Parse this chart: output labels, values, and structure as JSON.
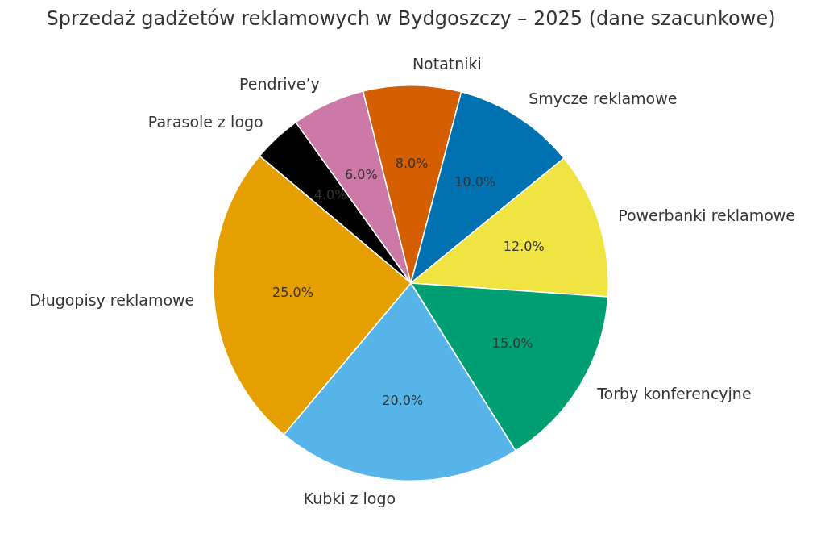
{
  "chart_data": {
    "type": "pie",
    "title": "Sprzedaż gadżetów reklamowych w Bydgoszczy – 2025 (dane szacunkowe)",
    "categories": [
      "Długopisy reklamowe",
      "Kubki z logo",
      "Torby konferencyjne",
      "Powerbanki reklamowe",
      "Smycze reklamowe",
      "Notatniki",
      "Pendrive’y",
      "Parasole z logo"
    ],
    "values": [
      25,
      20,
      15,
      12,
      10,
      8,
      6,
      4
    ],
    "colors": [
      "#e69f00",
      "#56b4e9",
      "#009e73",
      "#f0e442",
      "#0072b2",
      "#d55e00",
      "#cc79a7",
      "#000000"
    ],
    "value_labels": [
      "25.0%",
      "20.0%",
      "15.0%",
      "12.0%",
      "10.0%",
      "8.0%",
      "6.0%",
      "4.0%"
    ],
    "legend": false
  }
}
